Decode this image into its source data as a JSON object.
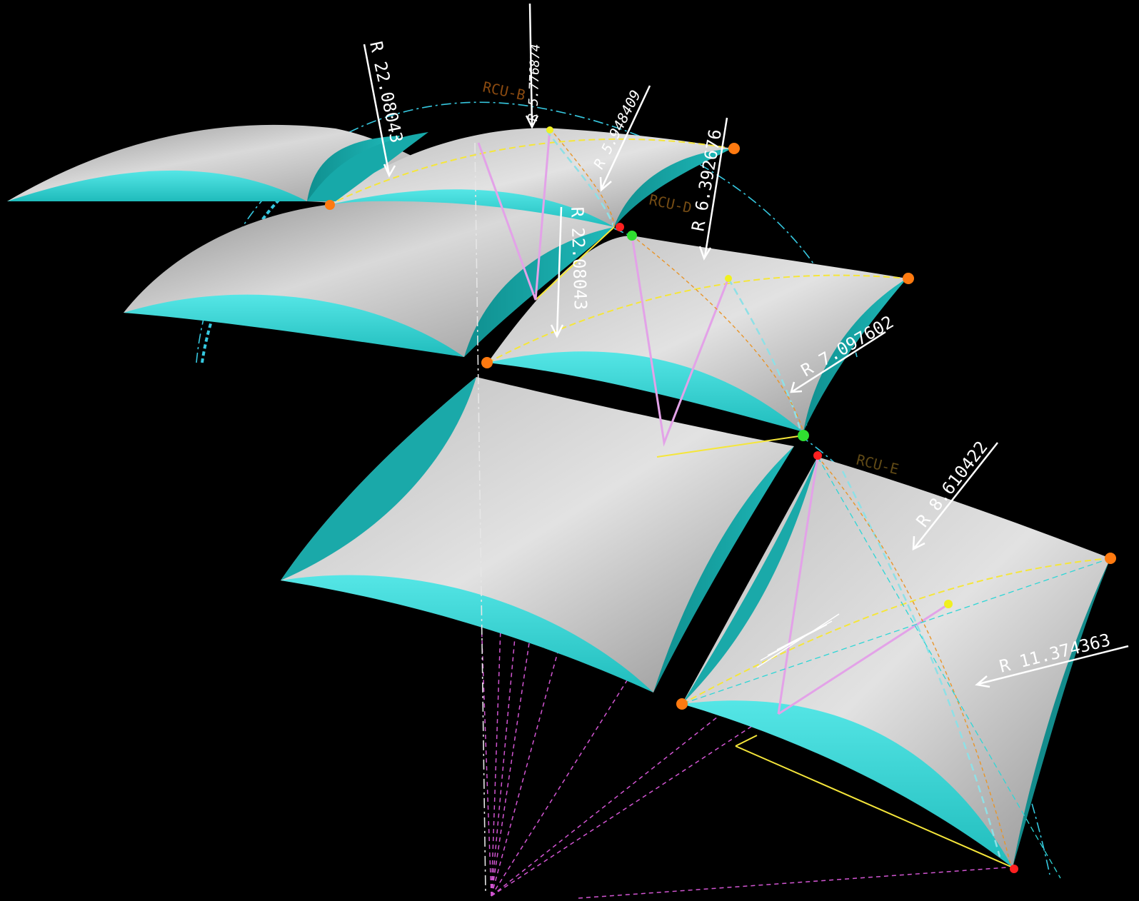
{
  "colors": {
    "background": "#000000",
    "panel_top": "#c8c8c8",
    "panel_fill": "#a8a8a8",
    "panel_edge": "#2fd6d6",
    "annotation": "#ffffff",
    "guide_yellow": "#f5e63a",
    "guide_magenta": "#d255d2",
    "guide_cyan": "#36c8e0",
    "tag_brown": "#8a4a10",
    "node_orange": "#ff7a10",
    "node_red": "#ff2020",
    "node_green": "#30e030",
    "node_yellow": "#f0f020"
  },
  "scene": {
    "panels": [
      {
        "name": "panel-top-left"
      },
      {
        "name": "panel-top-right"
      },
      {
        "name": "panel-middle-left"
      },
      {
        "name": "panel-middle-right"
      },
      {
        "name": "panel-bottom-left"
      },
      {
        "name": "panel-bottom-right"
      }
    ],
    "dimensions": [
      {
        "name": "radius-label-1",
        "text": "R 22.08043"
      },
      {
        "name": "radius-label-2",
        "text": "R 5.776874"
      },
      {
        "name": "radius-label-3",
        "text": "R 5.948409"
      },
      {
        "name": "radius-label-4",
        "text": "R 6.392676"
      },
      {
        "name": "radius-label-5",
        "text": "R 22.08043"
      },
      {
        "name": "radius-label-6",
        "text": "R 7.097602"
      },
      {
        "name": "radius-label-7",
        "text": "R 8.610422"
      },
      {
        "name": "radius-label-8",
        "text": "R 11.374363"
      }
    ],
    "tags": [
      {
        "name": "tag-rcu-b",
        "text": "RCU-B"
      },
      {
        "name": "tag-rcu-d",
        "text": "RCU-D"
      },
      {
        "name": "tag-rcu-e",
        "text": "RCU-E"
      }
    ]
  }
}
